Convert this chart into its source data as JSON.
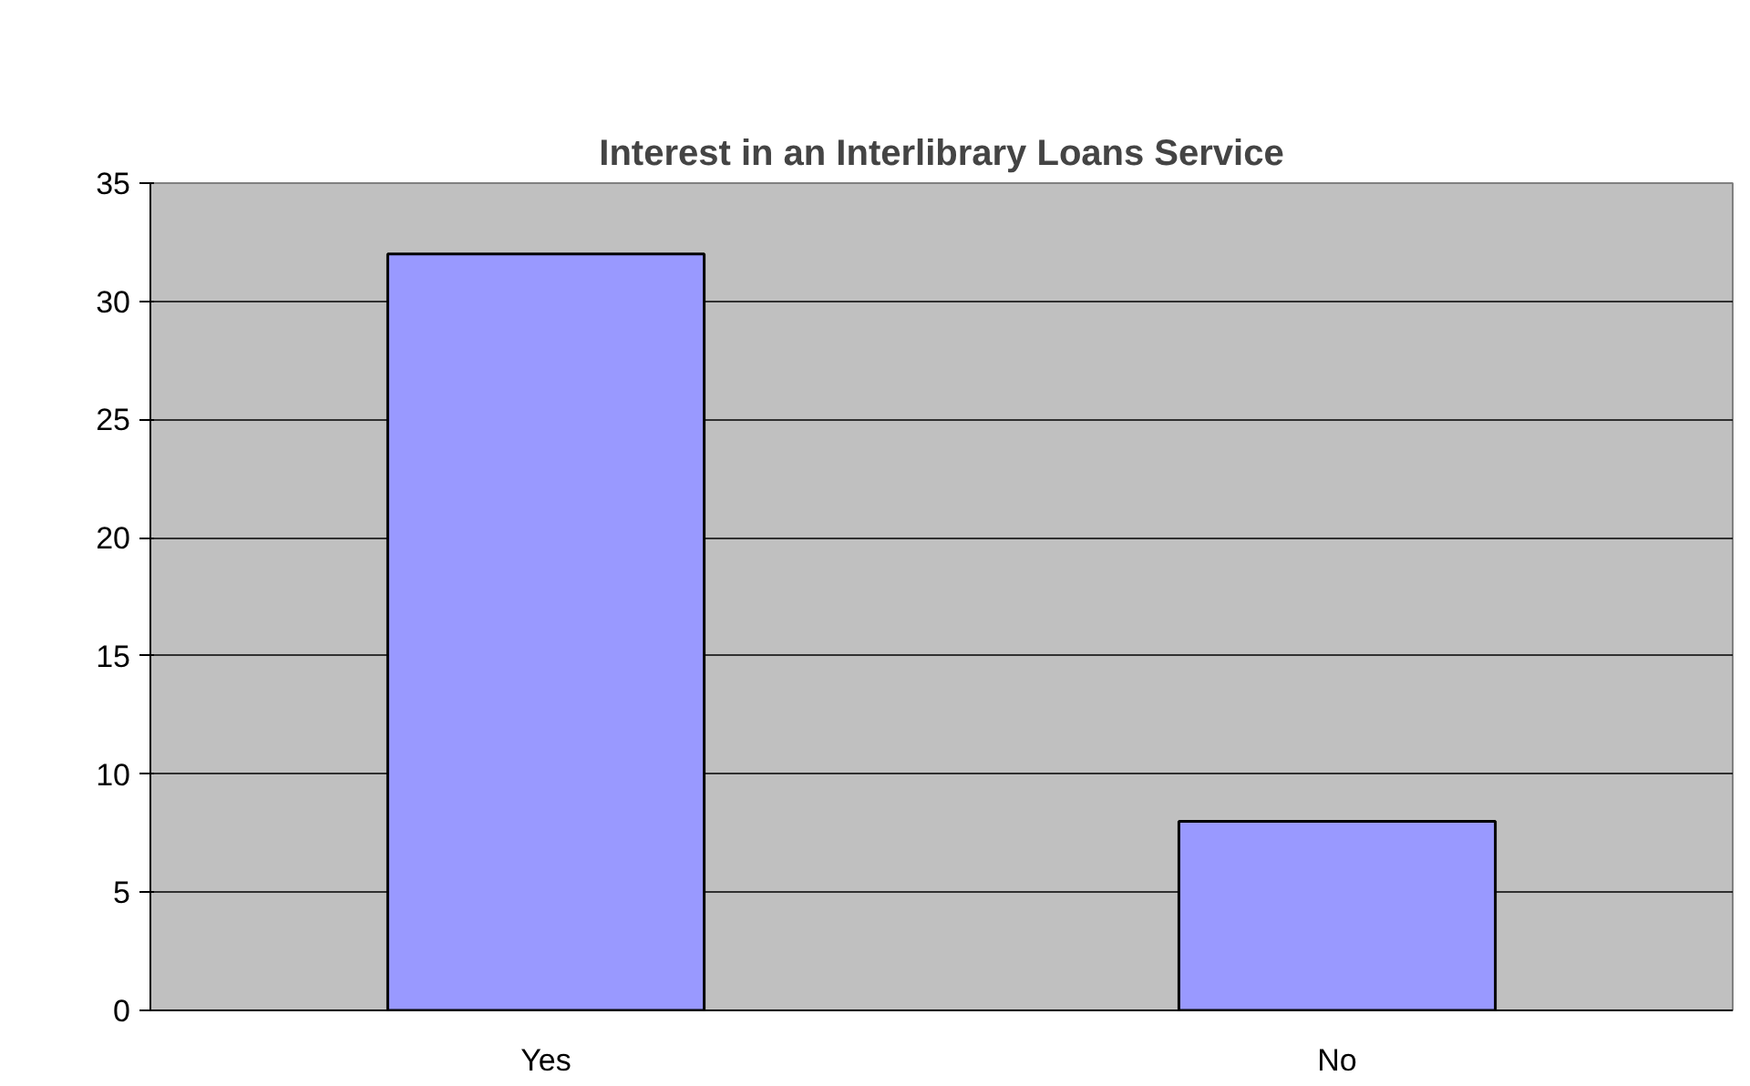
{
  "chart_data": {
    "type": "bar",
    "title": "Interest in an Interlibrary Loans Service",
    "categories": [
      "Yes",
      "No"
    ],
    "values": [
      32,
      8
    ],
    "color": "#9999ff",
    "ylim": [
      0,
      35
    ],
    "yticks": [
      0,
      5,
      10,
      15,
      20,
      25,
      30,
      35
    ],
    "grid": "y"
  }
}
